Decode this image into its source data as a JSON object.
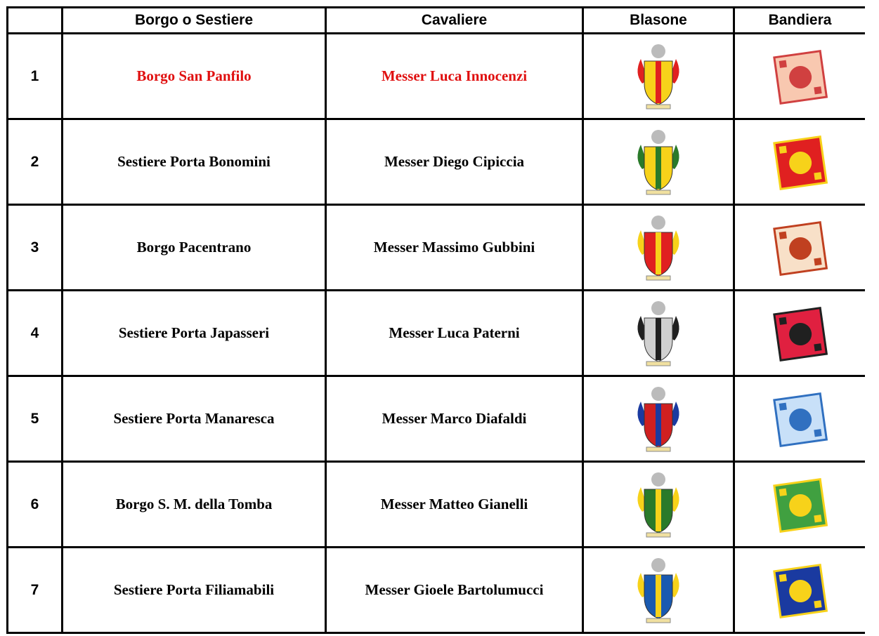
{
  "table": {
    "header": [
      "",
      "Borgo o Sestiere",
      "Cavaliere",
      "Blasone",
      "Bandiera"
    ],
    "rows": [
      [
        "1",
        "Borgo San Panfilo",
        "Messer Luca Innocenzi"
      ],
      [
        "2",
        "Sestiere Porta Bonomini",
        "Messer Diego Cipiccia"
      ],
      [
        "3",
        "Borgo Pacentrano",
        "Messer Massimo Gubbini"
      ],
      [
        "4",
        "Sestiere Porta Japasseri",
        "Messer Luca Paterni"
      ],
      [
        "5",
        "Sestiere Porta Manaresca",
        "Messer Marco Diafaldi"
      ],
      [
        "6",
        "Borgo S. M. della Tomba",
        "Messer Matteo Gianelli"
      ],
      [
        "7",
        "Sestiere Porta Filiamabili",
        "Messer Gioele Bartolumucci"
      ]
    ]
  }
}
